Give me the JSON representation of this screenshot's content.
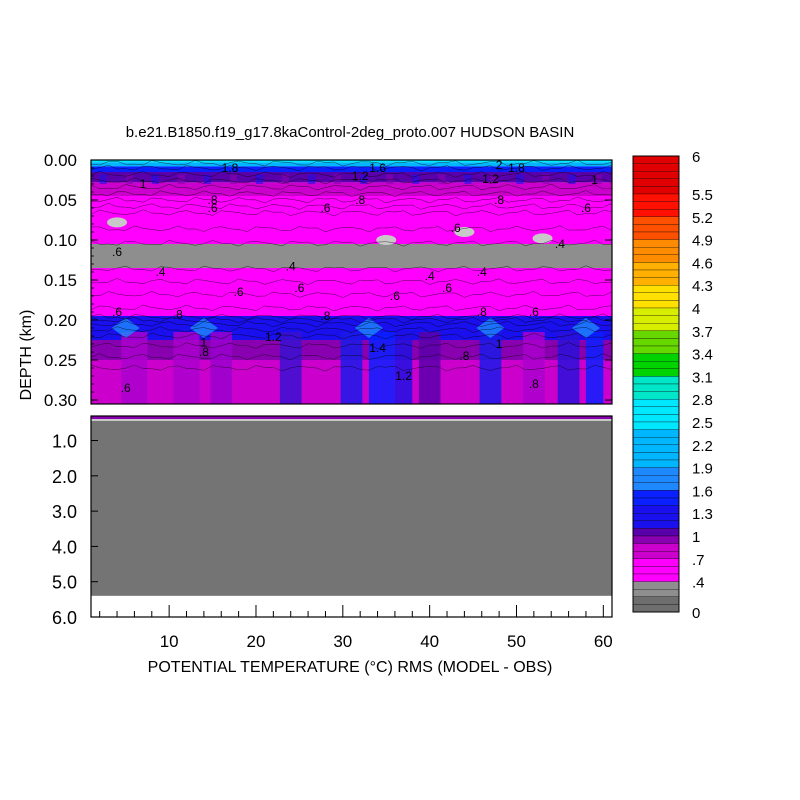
{
  "chart_data": {
    "type": "heatmap",
    "title": "b.e21.B1850.f19_g17.8kaControl-2deg_proto.007 HUDSON BASIN",
    "xlabel": "POTENTIAL TEMPERATURE (°C) RMS (MODEL - OBS)",
    "ylabel": "DEPTH (km)",
    "xlim": [
      1,
      61
    ],
    "x_ticks": [
      10,
      20,
      30,
      40,
      50,
      60
    ],
    "x_tick_labels": [
      "10",
      "20",
      "30",
      "40",
      "50",
      "60"
    ],
    "panels": [
      {
        "name": "upper",
        "ylim": [
          0.0,
          0.305
        ],
        "y_ticks": [
          0.0,
          0.05,
          0.1,
          0.15,
          0.2,
          0.25,
          0.3
        ],
        "y_tick_labels": [
          "0.00",
          "0.05",
          "0.10",
          "0.15",
          "0.20",
          "0.25",
          "0.30"
        ]
      },
      {
        "name": "lower",
        "ylim": [
          0.305,
          6.0
        ],
        "y_ticks": [
          1.0,
          2.0,
          3.0,
          4.0,
          5.0,
          6.0
        ],
        "y_tick_labels": [
          "1.0",
          "2.0",
          "3.0",
          "4.0",
          "5.0",
          "6.0"
        ],
        "fill_value": 0,
        "data_max_depth": 5.4
      }
    ],
    "depth_bands": [
      {
        "from": 0.0,
        "to": 0.003,
        "value": 2.4
      },
      {
        "from": 0.003,
        "to": 0.008,
        "value": 1.9
      },
      {
        "from": 0.008,
        "to": 0.015,
        "value": 1.4
      },
      {
        "from": 0.015,
        "to": 0.028,
        "value": 1.05
      },
      {
        "from": 0.028,
        "to": 0.045,
        "value": 0.8
      },
      {
        "from": 0.045,
        "to": 0.07,
        "value": 0.6
      },
      {
        "from": 0.07,
        "to": 0.09,
        "value": 0.5
      },
      {
        "from": 0.09,
        "to": 0.105,
        "value": 0.55
      },
      {
        "from": 0.105,
        "to": 0.135,
        "value": 0.3
      },
      {
        "from": 0.135,
        "to": 0.15,
        "value": 0.55
      },
      {
        "from": 0.15,
        "to": 0.195,
        "value": 0.6
      },
      {
        "from": 0.195,
        "to": 0.225,
        "value": 1.15
      },
      {
        "from": 0.225,
        "to": 0.25,
        "value": 0.9
      },
      {
        "from": 0.25,
        "to": 0.305,
        "value": 0.75
      }
    ],
    "contour_labels": [
      {
        "x": 17,
        "y": 0.01,
        "text": "1.8"
      },
      {
        "x": 34,
        "y": 0.01,
        "text": "1.6"
      },
      {
        "x": 50,
        "y": 0.01,
        "text": "1.8"
      },
      {
        "x": 48,
        "y": 0.006,
        "text": "2"
      },
      {
        "x": 7,
        "y": 0.03,
        "text": "1"
      },
      {
        "x": 32,
        "y": 0.02,
        "text": "1.2"
      },
      {
        "x": 47,
        "y": 0.024,
        "text": "1.2"
      },
      {
        "x": 59,
        "y": 0.025,
        "text": "1"
      },
      {
        "x": 15,
        "y": 0.05,
        "text": ".8"
      },
      {
        "x": 15,
        "y": 0.06,
        "text": ".6"
      },
      {
        "x": 28,
        "y": 0.06,
        "text": ".6"
      },
      {
        "x": 32,
        "y": 0.05,
        "text": ".8"
      },
      {
        "x": 48,
        "y": 0.05,
        "text": ".8"
      },
      {
        "x": 58,
        "y": 0.06,
        "text": ".6"
      },
      {
        "x": 43,
        "y": 0.085,
        "text": ".6"
      },
      {
        "x": 55,
        "y": 0.105,
        "text": ".4"
      },
      {
        "x": 4,
        "y": 0.115,
        "text": ".6"
      },
      {
        "x": 9,
        "y": 0.14,
        "text": ".4"
      },
      {
        "x": 24,
        "y": 0.133,
        "text": ".4"
      },
      {
        "x": 40,
        "y": 0.145,
        "text": ".4"
      },
      {
        "x": 46,
        "y": 0.14,
        "text": ".4"
      },
      {
        "x": 42,
        "y": 0.16,
        "text": ".6"
      },
      {
        "x": 18,
        "y": 0.165,
        "text": ".6"
      },
      {
        "x": 25,
        "y": 0.16,
        "text": ".6"
      },
      {
        "x": 36,
        "y": 0.17,
        "text": ".6"
      },
      {
        "x": 4,
        "y": 0.19,
        "text": ".6"
      },
      {
        "x": 11,
        "y": 0.193,
        "text": ".8"
      },
      {
        "x": 28,
        "y": 0.195,
        "text": ".8"
      },
      {
        "x": 46,
        "y": 0.19,
        "text": ".8"
      },
      {
        "x": 52,
        "y": 0.19,
        "text": ".6"
      },
      {
        "x": 22,
        "y": 0.221,
        "text": "1.2"
      },
      {
        "x": 34,
        "y": 0.235,
        "text": "1.4"
      },
      {
        "x": 37,
        "y": 0.27,
        "text": "1.2"
      },
      {
        "x": 14,
        "y": 0.228,
        "text": "1"
      },
      {
        "x": 14,
        "y": 0.24,
        "text": ".8"
      },
      {
        "x": 44,
        "y": 0.245,
        "text": ".8"
      },
      {
        "x": 48,
        "y": 0.23,
        "text": "1"
      },
      {
        "x": 5,
        "y": 0.285,
        "text": ".6"
      },
      {
        "x": 52,
        "y": 0.28,
        "text": ".8"
      }
    ],
    "colorbar": {
      "min": 0,
      "max": 6,
      "labels": [
        "6",
        "5.5",
        "5.2",
        "4.9",
        "4.6",
        "4.3",
        "4",
        "3.7",
        "3.4",
        "3.1",
        "2.8",
        "2.5",
        "2.2",
        "1.9",
        "1.6",
        "1.3",
        "1",
        ".7",
        ".4",
        "0"
      ],
      "color_stops": [
        {
          "value": 0.0,
          "color": "#6e6e6e"
        },
        {
          "value": 0.2,
          "color": "#8e8e8e"
        },
        {
          "value": 0.35,
          "color": "#c8c8c8"
        },
        {
          "value": 0.4,
          "color": "#f3f3f3"
        },
        {
          "value": 0.42,
          "color": "#ff00ff"
        },
        {
          "value": 0.7,
          "color": "#cc00cc"
        },
        {
          "value": 0.9,
          "color": "#8800b0"
        },
        {
          "value": 1.0,
          "color": "#5a00aa"
        },
        {
          "value": 1.15,
          "color": "#1a10ee"
        },
        {
          "value": 1.35,
          "color": "#0a20ff"
        },
        {
          "value": 1.6,
          "color": "#1e88ff"
        },
        {
          "value": 1.9,
          "color": "#00b7ff"
        },
        {
          "value": 2.4,
          "color": "#00e8ff"
        },
        {
          "value": 2.8,
          "color": "#00e6c8"
        },
        {
          "value": 3.1,
          "color": "#00d200"
        },
        {
          "value": 3.4,
          "color": "#66d800"
        },
        {
          "value": 3.7,
          "color": "#d8ee00"
        },
        {
          "value": 4.0,
          "color": "#ffe000"
        },
        {
          "value": 4.3,
          "color": "#ffb000"
        },
        {
          "value": 4.6,
          "color": "#ff8c00"
        },
        {
          "value": 4.9,
          "color": "#ff5000"
        },
        {
          "value": 5.2,
          "color": "#ff1000"
        },
        {
          "value": 5.5,
          "color": "#e00000"
        },
        {
          "value": 6.0,
          "color": "#a00000"
        }
      ]
    },
    "colors": {
      "land_gray": "#747474",
      "axis": "#000000"
    }
  }
}
